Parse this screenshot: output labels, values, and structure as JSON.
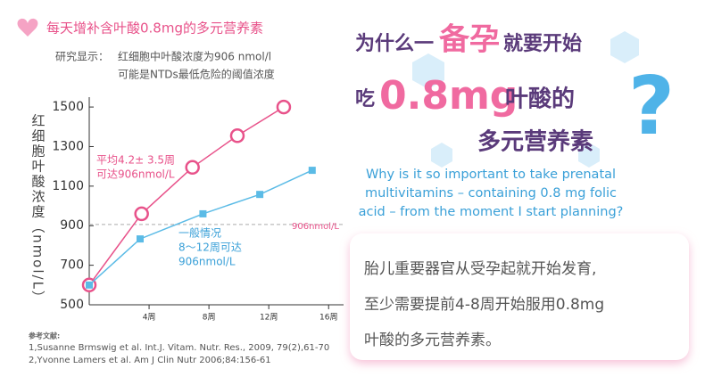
{
  "chart_data": {
    "type": "line",
    "ylabel": "红细胞叶酸浓度（nmol/L）",
    "xlim": [
      0,
      17
    ],
    "ylim": [
      500,
      1550
    ],
    "xticks": [
      {
        "value": 4,
        "label": "4周"
      },
      {
        "value": 8,
        "label": "8周"
      },
      {
        "value": 12,
        "label": "12周"
      },
      {
        "value": 16,
        "label": "16周"
      }
    ],
    "yticks": [
      500,
      700,
      900,
      1100,
      1300,
      1500
    ],
    "series": [
      {
        "color": "#e8528a",
        "x": [
          0,
          3.5,
          6.9,
          9.9,
          13.0
        ],
        "values": [
          600,
          960,
          1195,
          1355,
          1500
        ]
      },
      {
        "color": "#5bbbe6",
        "x": [
          0,
          3.4,
          7.6,
          11.4,
          14.9
        ],
        "values": [
          600,
          833,
          960,
          1058,
          1180
        ]
      }
    ],
    "reference_line": {
      "value": 906,
      "label": "906nmol/L"
    },
    "annotations": [
      {
        "lines": [
          "平均4.2± 3.5周",
          "可达906nmol/L"
        ],
        "color": "#e8528a"
      },
      {
        "lines": [
          "一般情况",
          "8～12周可达",
          "906nmol/L"
        ],
        "color": "#3aa0d8"
      }
    ]
  },
  "header": {
    "title": "每天增补含叶酸0.8mg的多元营养素",
    "lead": "研究显示：",
    "lines": [
      "红细胞中叶酸浓度为906 nmol/l",
      "可能是NTDs最低危险的阈值浓度"
    ]
  },
  "references": {
    "title": "参考文献:",
    "items": [
      "1,Susanne Brmswig et al. Int.J. Vitam. Nutr. Res., 2009, 79(2),61-70",
      "2,Yvonne Lamers et al. Am J Clin Nutr 2006;84:156-61"
    ]
  },
  "headline": {
    "line1": [
      "为什么一",
      "备孕",
      "就要开始"
    ],
    "line2": [
      "吃",
      "0.8mg",
      "叶酸的"
    ],
    "line3": "多元营养素",
    "mark": "?"
  },
  "english": [
    "Why is it so important to take prenatal",
    "multivitamins – containing 0.8 mg folic",
    "acid – from the moment I start planning?"
  ],
  "box": [
    "胎儿重要器官从受孕起就开始发育,",
    "至少需要提前4-8周开始服用0.8mg",
    "叶酸的多元营养素。"
  ]
}
